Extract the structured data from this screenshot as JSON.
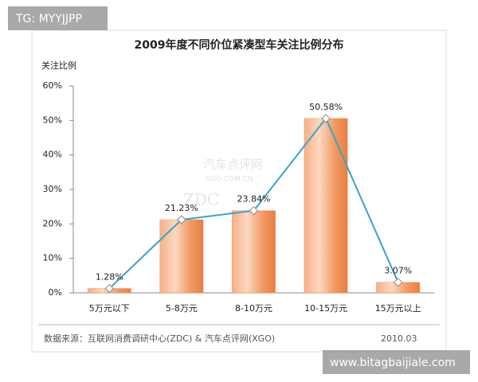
{
  "chart_data": {
    "type": "bar",
    "title": "2009年度不同价位紧凑型车关注比例分布",
    "y_label": "关注比例",
    "categories": [
      "5万元以下",
      "5-8万元",
      "8-10万元",
      "10-15万元",
      "15万元以上"
    ],
    "values": [
      1.28,
      21.23,
      23.84,
      50.58,
      3.07
    ],
    "value_labels": [
      "1.28%",
      "21.23%",
      "23.84%",
      "50.58%",
      "3.07%"
    ],
    "color": "#f29a63",
    "line_color": "#3aa3c8",
    "ylim": [
      0,
      60
    ],
    "yticks": [
      {
        "value": 0,
        "label": "0%"
      },
      {
        "value": 10,
        "label": "10%"
      },
      {
        "value": 20,
        "label": "20%"
      },
      {
        "value": 30,
        "label": "30%"
      },
      {
        "value": 40,
        "label": "40%"
      },
      {
        "value": 50,
        "label": "50%"
      },
      {
        "value": 60,
        "label": "60%"
      }
    ],
    "grid": false,
    "source": "数据来源：互联网消费调研中心(ZDC) & 汽车点评网(XGO)",
    "date": "2010.03"
  },
  "watermarks": {
    "top_left": "TG: MYYJJPP",
    "bottom_right": "www.bitagbaijiale.com",
    "logo": [
      "汽车点评网",
      "XGO.COM.CN",
      "ZDC"
    ]
  }
}
